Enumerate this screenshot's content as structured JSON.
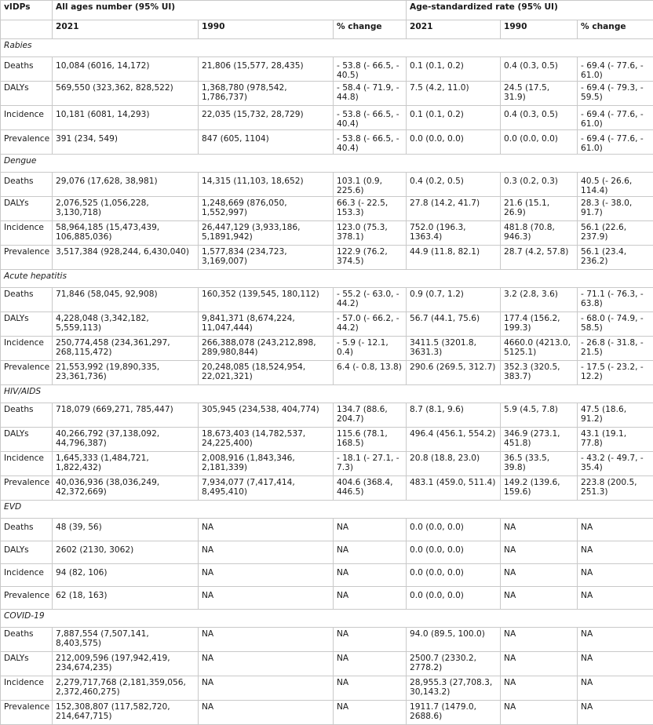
{
  "header": {
    "col0": "vIDPs",
    "group_all": "All ages number (95% UI)",
    "group_rate": "Age-standardized rate (95% UI)",
    "sub": [
      "2021",
      "1990",
      "% change",
      "2021",
      "1990",
      "% change"
    ]
  },
  "sections": [
    {
      "title": "Rabies",
      "rows": [
        [
          "Deaths",
          "10,084 (6016, 14,172)",
          "21,806 (15,577, 28,435)",
          "- 53.8 (- 66.5, - 40.5)",
          "0.1 (0.1, 0.2)",
          "0.4 (0.3, 0.5)",
          "- 69.4 (- 77.6, - 61.0)"
        ],
        [
          "DALYs",
          "569,550 (323,362, 828,522)",
          "1,368,780 (978,542, 1,786,737)",
          "- 58.4 (- 71.9, - 44.8)",
          "7.5 (4.2, 11.0)",
          "24.5 (17.5, 31.9)",
          "- 69.4 (- 79.3, - 59.5)"
        ],
        [
          "Incidence",
          "10,181 (6081, 14,293)",
          "22,035 (15,732, 28,729)",
          "- 53.8 (- 66.5, - 40.4)",
          "0.1 (0.1, 0.2)",
          "0.4 (0.3, 0.5)",
          "- 69.4 (- 77.6, - 61.0)"
        ],
        [
          "Prevalence",
          "391 (234, 549)",
          "847 (605, 1104)",
          "- 53.8 (- 66.5, - 40.4)",
          "0.0 (0.0, 0.0)",
          "0.0 (0.0, 0.0)",
          "- 69.4 (- 77.6, - 61.0)"
        ]
      ]
    },
    {
      "title": "Dengue",
      "rows": [
        [
          "Deaths",
          "29,076 (17,628, 38,981)",
          "14,315 (11,103, 18,652)",
          "103.1 (0.9, 225.6)",
          "0.4 (0.2, 0.5)",
          "0.3 (0.2, 0.3)",
          "40.5 (- 26.6, 114.4)"
        ],
        [
          "DALYs",
          "2,076,525 (1,056,228, 3,130,718)",
          "1,248,669 (876,050, 1,552,997)",
          "66.3 (- 22.5, 153.3)",
          "27.8 (14.2, 41.7)",
          "21.6 (15.1, 26.9)",
          "28.3 (- 38.0, 91.7)"
        ],
        [
          "Incidence",
          "58,964,185 (15,473,439, 106,885,036)",
          "26,447,129 (3,933,186, 5,1891,942)",
          "123.0 (75.3, 378.1)",
          "752.0 (196.3, 1363.4)",
          "481.8 (70.8, 946.3)",
          "56.1 (22.6, 237.9)"
        ],
        [
          "Prevalence",
          "3,517,384 (928,244, 6,430,040)",
          "1,577,834 (234,723, 3,169,007)",
          "122.9 (76.2, 374.5)",
          "44.9 (11.8, 82.1)",
          "28.7 (4.2, 57.8)",
          "56.1 (23.4, 236.2)"
        ]
      ]
    },
    {
      "title": "Acute hepatitis",
      "rows": [
        [
          "Deaths",
          "71,846 (58,045, 92,908)",
          "160,352 (139,545, 180,112)",
          "- 55.2 (- 63.0, - 44.2)",
          "0.9 (0.7, 1.2)",
          "3.2 (2.8, 3.6)",
          "- 71.1 (- 76.3, - 63.8)"
        ],
        [
          "DALYs",
          "4,228,048 (3,342,182, 5,559,113)",
          "9,841,371 (8,674,224, 11,047,444)",
          "- 57.0 (- 66.2, - 44.2)",
          "56.7 (44.1, 75.6)",
          "177.4 (156.2, 199.3)",
          "- 68.0 (- 74.9, - 58.5)"
        ],
        [
          "Incidence",
          "250,774,458 (234,361,297, 268,115,472)",
          "266,388,078 (243,212,898, 289,980,844)",
          "- 5.9 (- 12.1, 0.4)",
          "3411.5 (3201.8, 3631.3)",
          "4660.0 (4213.0, 5125.1)",
          "- 26.8 (- 31.8, - 21.5)"
        ],
        [
          "Prevalence",
          "21,553,992 (19,890,335, 23,361,736)",
          "20,248,085 (18,524,954, 22,021,321)",
          "6.4 (- 0.8, 13.8)",
          "290.6 (269.5, 312.7)",
          "352.3 (320.5, 383.7)",
          "- 17.5 (- 23.2, - 12.2)"
        ]
      ]
    },
    {
      "title": "HIV/AIDS",
      "rows": [
        [
          "Deaths",
          "718,079 (669,271, 785,447)",
          "305,945 (234,538, 404,774)",
          "134.7 (88.6, 204.7)",
          "8.7 (8.1, 9.6)",
          "5.9 (4.5, 7.8)",
          "47.5 (18.6, 91.2)"
        ],
        [
          "DALYs",
          "40,266,792 (37,138,092, 44,796,387)",
          "18,673,403 (14,782,537, 24,225,400)",
          "115.6 (78.1, 168.5)",
          "496.4 (456.1, 554.2)",
          "346.9 (273.1, 451.8)",
          "43.1 (19.1, 77.8)"
        ],
        [
          "Incidence",
          "1,645,333 (1,484,721, 1,822,432)",
          "2,008,916 (1,843,346, 2,181,339)",
          "- 18.1 (- 27.1, - 7.3)",
          "20.8 (18.8, 23.0)",
          "36.5 (33.5, 39.8)",
          "- 43.2 (- 49.7, - 35.4)"
        ],
        [
          "Prevalence",
          "40,036,936 (38,036,249, 42,372,669)",
          "7,934,077 (7,417,414, 8,495,410)",
          "404.6 (368.4, 446.5)",
          "483.1 (459.0, 511.4)",
          "149.2 (139.6, 159.6)",
          "223.8 (200.5, 251.3)"
        ]
      ]
    },
    {
      "title": "EVD",
      "rows": [
        [
          "Deaths",
          "48 (39, 56)",
          "NA",
          "NA",
          "0.0 (0.0, 0.0)",
          "NA",
          "NA"
        ],
        [
          "DALYs",
          "2602 (2130, 3062)",
          "NA",
          "NA",
          "0.0 (0.0, 0.0)",
          "NA",
          "NA"
        ],
        [
          "Incidence",
          "94 (82, 106)",
          "NA",
          "NA",
          "0.0 (0.0, 0.0)",
          "NA",
          "NA"
        ],
        [
          "Prevalence",
          "62 (18, 163)",
          "NA",
          "NA",
          "0.0 (0.0, 0.0)",
          "NA",
          "NA"
        ]
      ]
    },
    {
      "title": "COVID-19",
      "rows": [
        [
          "Deaths",
          "7,887,554 (7,507,141, 8,403,575)",
          "NA",
          "NA",
          "94.0 (89.5, 100.0)",
          "NA",
          "NA"
        ],
        [
          "DALYs",
          "212,009,596 (197,942,419, 234,674,235)",
          "NA",
          "NA",
          "2500.7 (2330.2, 2778.2)",
          "NA",
          "NA"
        ],
        [
          "Incidence",
          "2,279,717,768 (2,181,359,056, 2,372,460,275)",
          "NA",
          "NA",
          "28,955.3 (27,708.3, 30,143.2)",
          "NA",
          "NA"
        ],
        [
          "Prevalence",
          "152,308,807 (117,582,720, 214,647,715)",
          "NA",
          "NA",
          "1911.7 (1479.0, 2688.6)",
          "NA",
          "NA"
        ]
      ]
    }
  ]
}
